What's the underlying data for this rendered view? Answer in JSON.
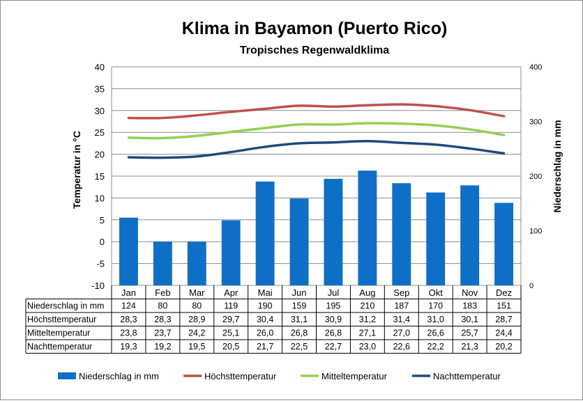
{
  "chart_data": {
    "type": "bar",
    "title": "Klima in Bayamon (Puerto Rico)",
    "subtitle": "Tropisches Regenwaldklima",
    "ylabel": "Temperatur in °C",
    "y2label": "Niederschlag in mm",
    "ylim": [
      -10,
      40
    ],
    "y2lim": [
      0,
      400
    ],
    "yticks": [
      "40",
      "35",
      "30",
      "25",
      "20",
      "15",
      "10",
      "5",
      "0",
      "-5",
      "-10"
    ],
    "y2ticks": [
      "400",
      "300",
      "200",
      "100",
      "0"
    ],
    "grid": true,
    "legend_position": "bottom",
    "categories": [
      "Jan",
      "Feb",
      "Mar",
      "Apr",
      "Mai",
      "Jun",
      "Jul",
      "Aug",
      "Sep",
      "Okt",
      "Nov",
      "Dez"
    ],
    "series": [
      {
        "name": "Niederschlag in mm",
        "kind": "bar",
        "axis": "right",
        "color": "#0f6fc6",
        "values": [
          124,
          80,
          80,
          119,
          190,
          159,
          195,
          210,
          187,
          170,
          183,
          151
        ],
        "labels": [
          "124",
          "80",
          "80",
          "119",
          "190",
          "159",
          "195",
          "210",
          "187",
          "170",
          "183",
          "151"
        ]
      },
      {
        "name": "Höchsttemperatur",
        "kind": "line",
        "axis": "left",
        "color": "#c0504d",
        "values": [
          28.3,
          28.3,
          28.9,
          29.7,
          30.4,
          31.1,
          30.9,
          31.2,
          31.4,
          31.0,
          30.1,
          28.7
        ],
        "labels": [
          "28,3",
          "28,3",
          "28,9",
          "29,7",
          "30,4",
          "31,1",
          "30,9",
          "31,2",
          "31,4",
          "31,0",
          "30,1",
          "28,7"
        ]
      },
      {
        "name": "Mitteltemperatur",
        "kind": "line",
        "axis": "left",
        "color": "#92d050",
        "values": [
          23.8,
          23.7,
          24.2,
          25.1,
          26.0,
          26.8,
          26.8,
          27.1,
          27.0,
          26.6,
          25.7,
          24.4
        ],
        "labels": [
          "23,8",
          "23,7",
          "24,2",
          "25,1",
          "26,0",
          "26,8",
          "26,8",
          "27,1",
          "27,0",
          "26,6",
          "25,7",
          "24,4"
        ]
      },
      {
        "name": "Nachttemperatur",
        "kind": "line",
        "axis": "left",
        "color": "#1f497d",
        "values": [
          19.3,
          19.2,
          19.5,
          20.5,
          21.7,
          22.5,
          22.7,
          23.0,
          22.6,
          22.2,
          21.3,
          20.2
        ],
        "labels": [
          "19,3",
          "19,2",
          "19,5",
          "20,5",
          "21,7",
          "22,5",
          "22,7",
          "23,0",
          "22,6",
          "22,2",
          "21,3",
          "20,2"
        ]
      }
    ]
  }
}
